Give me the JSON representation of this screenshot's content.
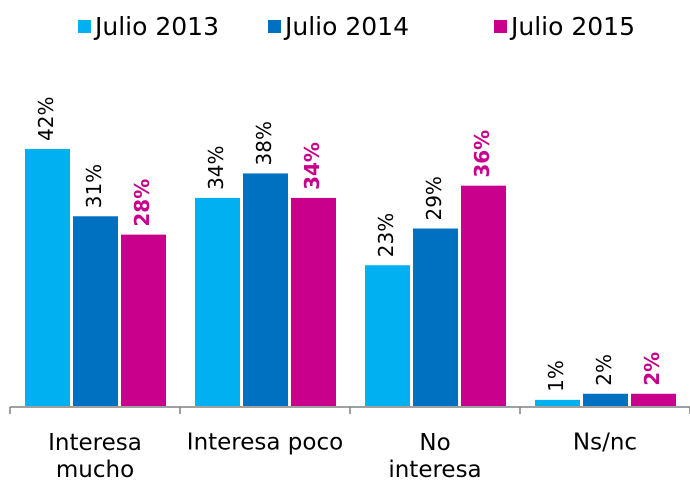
{
  "chart_data": {
    "type": "bar",
    "categories": [
      "Interesa\nmucho",
      "Interesa poco",
      "No\ninteresa",
      "Ns/nc"
    ],
    "series": [
      {
        "name": "Julio 2013",
        "color": "#00b0f0",
        "values": [
          42,
          34,
          23,
          1
        ],
        "value_labels": [
          "42%",
          "34%",
          "23%",
          "1%"
        ]
      },
      {
        "name": "Julio 2014",
        "color": "#0070c0",
        "values": [
          31,
          38,
          29,
          2
        ],
        "value_labels": [
          "31%",
          "38%",
          "29%",
          "2%"
        ]
      },
      {
        "name": "Julio 2015",
        "color": "#c8008c",
        "values": [
          28,
          34,
          36,
          2
        ],
        "value_labels": [
          "28%",
          "34%",
          "36%",
          "2%"
        ]
      }
    ],
    "legend": "top"
  }
}
